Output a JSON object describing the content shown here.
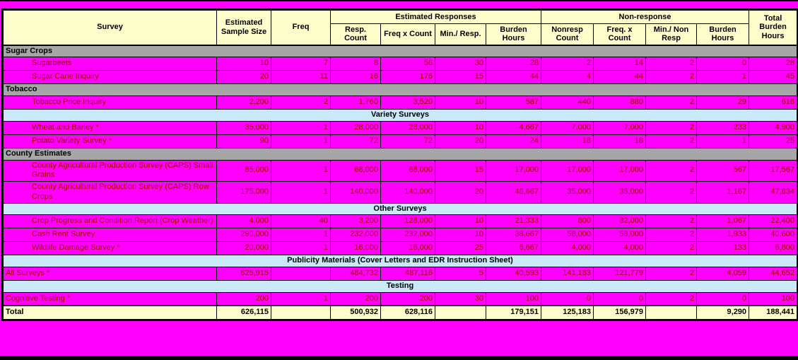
{
  "colors": {
    "page_bg": "#FF00FF",
    "header_bg": "#FFFFCC",
    "section_bg": "#A6A6A6",
    "group_bg": "#C9E8F8",
    "data_text": "#990000",
    "border": "#000000"
  },
  "table": {
    "header": {
      "survey": "Survey",
      "sample_size": "Estimated\nSample Size",
      "freq": "Freq",
      "est_responses_group": "Estimated Responses",
      "resp_count": "Resp.\nCount",
      "freq_x_count": "Freq x Count",
      "min_resp": "Min./ Resp.",
      "burden_hours": "Burden\nHours",
      "nonresponse_group": "Non-response",
      "nonresp_count": "Nonresp\nCount",
      "nr_freq_x_count": "Freq. x\nCount",
      "min_non_resp": "Min./ Non\nResp",
      "nr_burden_hours": "Burden\nHours",
      "total_burden_hours": "Total\nBurden\nHours"
    },
    "rows": [
      {
        "type": "section",
        "label": "Sugar Crops"
      },
      {
        "type": "data",
        "indent": true,
        "name": "Sugarbeets",
        "values": [
          "10",
          "7",
          "8",
          "56",
          "30",
          "28",
          "2",
          "14",
          "2",
          "0",
          "28"
        ]
      },
      {
        "type": "data",
        "indent": true,
        "name": "Sugar Cane Inquiry",
        "values": [
          "20",
          "11",
          "16",
          "176",
          "15",
          "44",
          "4",
          "44",
          "2",
          "1",
          "45"
        ]
      },
      {
        "type": "section",
        "label": "Tobacco"
      },
      {
        "type": "data",
        "indent": true,
        "name": "Tobacco Price Inquiry",
        "values": [
          "2,200",
          "2",
          "1,760",
          "3,520",
          "10",
          "587",
          "440",
          "880",
          "2",
          "29",
          "616"
        ]
      },
      {
        "type": "group",
        "label": "Variety Surveys"
      },
      {
        "type": "data",
        "indent": true,
        "name": "Wheat and Barley *",
        "values": [
          "35,000",
          "1",
          "28,000",
          "28,000",
          "10",
          "4,667",
          "7,000",
          "7,000",
          "2",
          "233",
          "4,900"
        ]
      },
      {
        "type": "data",
        "indent": true,
        "name": "Potato Variety Survey *",
        "values": [
          "90",
          "1",
          "72",
          "72",
          "20",
          "24",
          "18",
          "18",
          "2",
          "1",
          "25"
        ]
      },
      {
        "type": "section",
        "label": "County Estimates"
      },
      {
        "type": "data",
        "indent": true,
        "name": "County Agricultural Production Survey (CAPS) Small Grains",
        "values": [
          "85,000",
          "1",
          "68,000",
          "68,000",
          "15",
          "17,000",
          "17,000",
          "17,000",
          "2",
          "567",
          "17,567"
        ]
      },
      {
        "type": "data",
        "indent": true,
        "name": "County Agricultural Production Survey (CAPS) Row Crops",
        "values": [
          "175,000",
          "1",
          "140,000",
          "140,000",
          "20",
          "46,667",
          "35,000",
          "35,000",
          "2",
          "1,167",
          "47,834"
        ]
      },
      {
        "type": "group",
        "label": "Other Surveys"
      },
      {
        "type": "data",
        "indent": true,
        "name": "Crop Progress and Condition Report (Crop Weather)",
        "values": [
          "4,000",
          "40",
          "3,200",
          "128,000",
          "10",
          "21,333",
          "800",
          "32,000",
          "2",
          "1,067",
          "22,400"
        ]
      },
      {
        "type": "data",
        "indent": true,
        "name": "Cash Rent Survey",
        "values": [
          "290,000",
          "1",
          "232,000",
          "232,000",
          "10",
          "38,667",
          "58,000",
          "58,000",
          "2",
          "1,933",
          "40,600"
        ]
      },
      {
        "type": "data",
        "indent": true,
        "name": "Wildlife Damage Survey *",
        "values": [
          "20,000",
          "1",
          "16,000",
          "16,000",
          "25",
          "6,667",
          "4,000",
          "4,000",
          "2",
          "133",
          "6,800"
        ]
      },
      {
        "type": "group",
        "label": "Publicity Materials (Cover Letters and EDR Instruction Sheet)"
      },
      {
        "type": "data",
        "indent": false,
        "name": "All Surveys *",
        "values": [
          "625,915",
          "",
          "484,732",
          "487,116",
          "5",
          "40,593",
          "141,183",
          "121,779",
          "2",
          "4,059",
          "44,652"
        ]
      },
      {
        "type": "group",
        "label": "Testing"
      },
      {
        "type": "data",
        "indent": false,
        "name": "Cognitive Testing *",
        "values": [
          "200",
          "1",
          "200",
          "200",
          "30",
          "100",
          "0",
          "0",
          "2",
          "0",
          "100"
        ]
      },
      {
        "type": "total",
        "name": "Total",
        "values": [
          "626,115",
          "",
          "500,932",
          "628,116",
          "",
          "179,151",
          "125,183",
          "156,979",
          "",
          "9,290",
          "188,441"
        ]
      }
    ]
  }
}
